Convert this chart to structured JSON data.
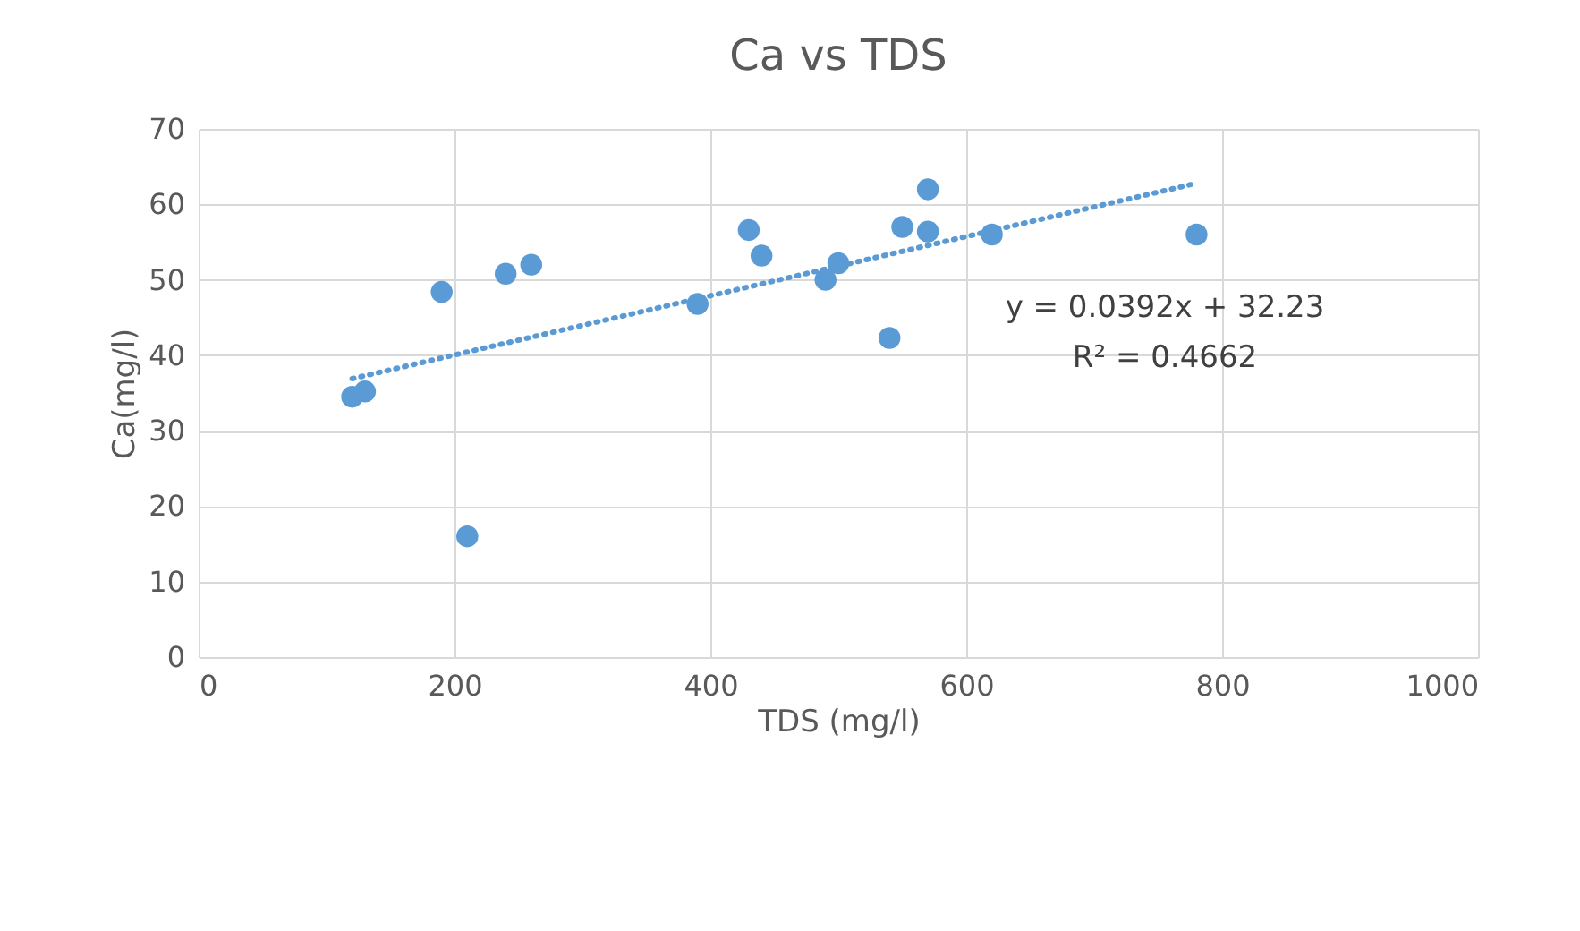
{
  "chart_data": {
    "type": "scatter",
    "title": "Ca vs TDS",
    "xlabel": "TDS (mg/l)",
    "ylabel": "Ca(mg/l)",
    "xlim": [
      0,
      1000
    ],
    "xticks": [
      0,
      200,
      400,
      600,
      800,
      1000
    ],
    "ylim": [
      0,
      70
    ],
    "yticks": [
      0,
      10,
      20,
      30,
      40,
      50,
      60,
      70
    ],
    "grid": true,
    "marker": "circle",
    "series": [
      {
        "color": "#5b9bd5",
        "x": [
          120,
          130,
          190,
          210,
          240,
          260,
          390,
          430,
          440,
          490,
          500,
          540,
          550,
          570,
          570,
          620,
          780
        ],
        "values": [
          34.5,
          35.2,
          48.4,
          16,
          50.8,
          52,
          46.8,
          56.6,
          53.2,
          50,
          52.2,
          42.3,
          57,
          62,
          56.4,
          56,
          56
        ]
      },
      {
        "type": "line",
        "marker": "none",
        "color": "#5b9bd5",
        "line_style": "dotted",
        "x": [
          120,
          780
        ],
        "values": [
          36.9,
          62.8
        ]
      }
    ],
    "annotations": [
      "y = 0.0392x + 32.23",
      "R² = 0.4662"
    ]
  }
}
